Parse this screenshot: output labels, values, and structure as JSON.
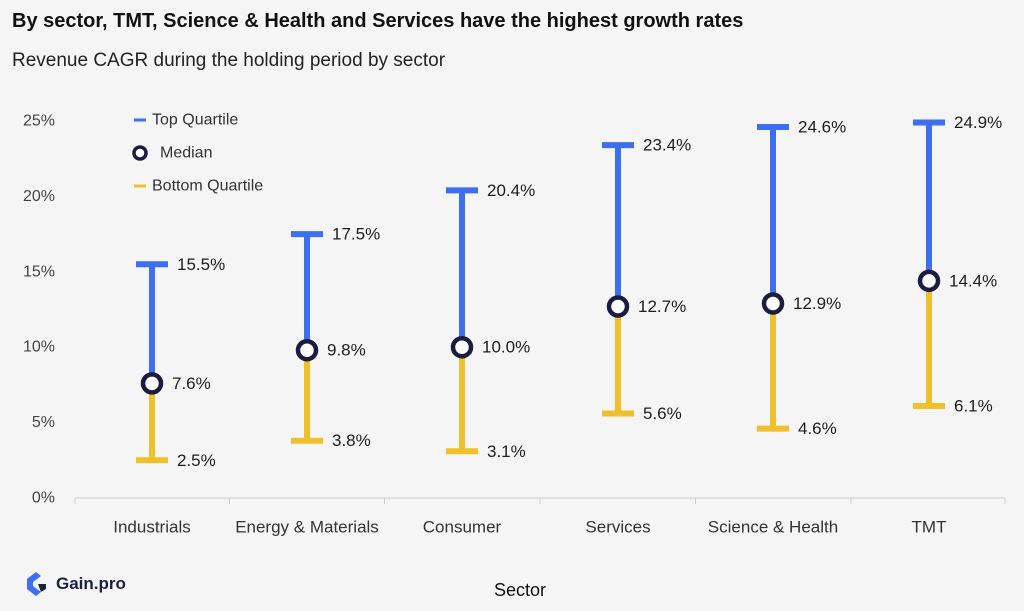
{
  "header": {
    "title": "By sector, TMT, Science & Health and Services have the highest growth rates",
    "subtitle": "Revenue CAGR during the holding period by sector"
  },
  "brand": {
    "name": "Gain.pro"
  },
  "colors": {
    "top": "#3d6ff2",
    "bottom": "#f0c02c",
    "median_stroke": "#1c1c40",
    "median_fill": "#ffffff",
    "axis": "#cccccc"
  },
  "chart_data": {
    "type": "range",
    "xlabel": "Sector",
    "ylabel": "",
    "ylim": [
      0,
      25
    ],
    "yticks": [
      "0%",
      "5%",
      "10%",
      "15%",
      "20%",
      "25%"
    ],
    "categories": [
      "Industrials",
      "Energy & Materials",
      "Consumer",
      "Services",
      "Science & Health",
      "TMT"
    ],
    "legend": [
      "Top Quartile",
      "Median",
      "Bottom Quartile"
    ],
    "legend_position": "top-left",
    "grid": false,
    "series": [
      {
        "name": "Top Quartile",
        "values": [
          15.5,
          17.5,
          20.4,
          23.4,
          24.6,
          24.9
        ],
        "labels": [
          "15.5%",
          "17.5%",
          "20.4%",
          "23.4%",
          "24.6%",
          "24.9%"
        ]
      },
      {
        "name": "Median",
        "values": [
          7.6,
          9.8,
          10.0,
          12.7,
          12.9,
          14.4
        ],
        "labels": [
          "7.6%",
          "9.8%",
          "10.0%",
          "12.7%",
          "12.9%",
          "14.4%"
        ]
      },
      {
        "name": "Bottom Quartile",
        "values": [
          2.5,
          3.8,
          3.1,
          5.6,
          4.6,
          6.1
        ],
        "labels": [
          "2.5%",
          "3.8%",
          "3.1%",
          "5.6%",
          "4.6%",
          "6.1%"
        ]
      }
    ]
  }
}
